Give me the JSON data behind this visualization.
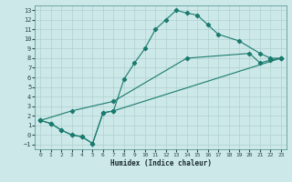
{
  "xlabel": "Humidex (Indice chaleur)",
  "bg_color": "#cce8e8",
  "grid_color": "#b0d0d0",
  "line_color": "#1a7a6e",
  "xlim": [
    -0.5,
    23.5
  ],
  "ylim": [
    -1.5,
    13.5
  ],
  "xticks": [
    0,
    1,
    2,
    3,
    4,
    5,
    6,
    7,
    8,
    9,
    10,
    11,
    12,
    13,
    14,
    15,
    16,
    17,
    18,
    19,
    20,
    21,
    22,
    23
  ],
  "yticks": [
    -1,
    0,
    1,
    2,
    3,
    4,
    5,
    6,
    7,
    8,
    9,
    10,
    11,
    12,
    13
  ],
  "curve1_x": [
    0,
    1,
    2,
    3,
    4,
    5,
    6,
    7,
    8,
    9,
    10,
    11,
    12,
    13,
    14,
    15,
    16,
    17,
    19,
    21,
    22,
    23
  ],
  "curve1_y": [
    1.5,
    1.2,
    0.5,
    0.0,
    -0.2,
    -0.9,
    2.3,
    2.5,
    5.8,
    7.5,
    9.0,
    11.0,
    12.0,
    13.0,
    12.7,
    12.5,
    11.5,
    10.5,
    9.8,
    8.5,
    8.0,
    8.0
  ],
  "curve2_x": [
    0,
    1,
    2,
    3,
    4,
    5,
    6,
    7,
    23
  ],
  "curve2_y": [
    1.5,
    1.2,
    0.5,
    0.0,
    -0.2,
    -0.9,
    2.3,
    2.5,
    8.0
  ],
  "curve3_x": [
    0,
    3,
    7,
    14,
    20,
    21,
    22,
    23
  ],
  "curve3_y": [
    1.5,
    2.5,
    3.5,
    8.0,
    8.5,
    7.5,
    7.8,
    8.0
  ]
}
